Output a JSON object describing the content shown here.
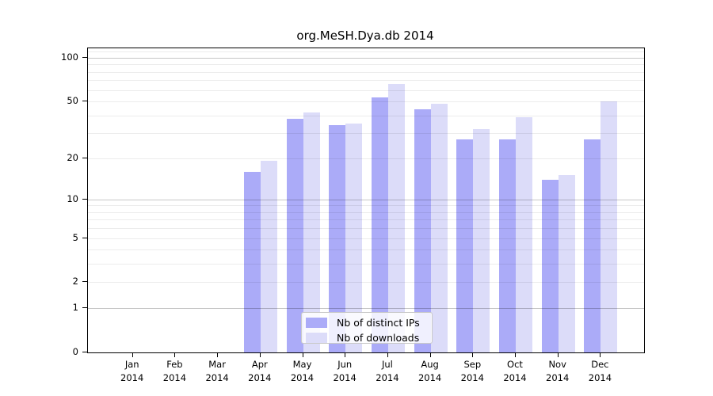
{
  "chart_data": {
    "type": "bar",
    "title": "org.MeSH.Dya.db 2014",
    "categories": [
      "Jan",
      "Feb",
      "Mar",
      "Apr",
      "May",
      "Jun",
      "Jul",
      "Aug",
      "Sep",
      "Oct",
      "Nov",
      "Dec"
    ],
    "x_tick_year": "2014",
    "series": [
      {
        "name": "Nb of distinct IPs",
        "color": "#ababf8",
        "values": [
          0,
          0,
          0,
          16,
          38,
          34,
          53,
          44,
          27,
          27,
          14,
          27
        ]
      },
      {
        "name": "Nb of downloads",
        "color": "#dcdcf9",
        "values": [
          0,
          0,
          0,
          19,
          42,
          35,
          66,
          48,
          32,
          39,
          15,
          50
        ]
      }
    ],
    "xlabel": "",
    "ylabel": "",
    "y_axis": {
      "scale": "log1p",
      "min": 0,
      "max": 116,
      "tick_values": [
        0,
        1,
        2,
        5,
        10,
        20,
        50,
        100
      ],
      "tick_labels": [
        "0",
        "1",
        "2",
        "5",
        "10",
        "20",
        "50",
        "100"
      ],
      "grid_major_values": [
        1,
        10,
        100
      ],
      "grid_minor_values": [
        2,
        3,
        4,
        5,
        6,
        7,
        8,
        9,
        20,
        30,
        40,
        50,
        60,
        70,
        80,
        90,
        110
      ],
      "grid": "on"
    },
    "legend": {
      "position": "lower center"
    }
  }
}
